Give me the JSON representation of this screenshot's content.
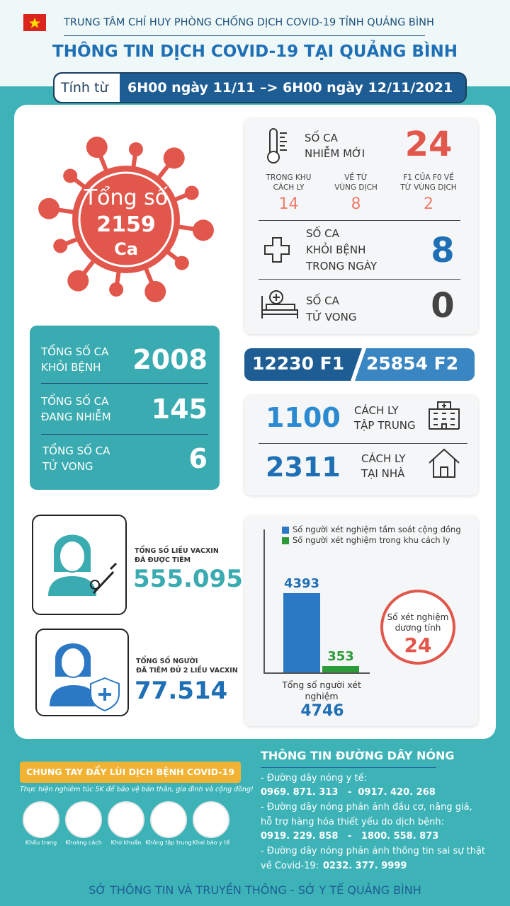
{
  "header": {
    "org": "TRUNG TÂM CHỈ HUY PHÒNG CHỐNG DỊCH COVID-19 TỈNH QUẢNG BÌNH",
    "title": "THÔNG TIN DỊCH COVID-19 TẠI QUẢNG BÌNH",
    "period_label": "Tính từ",
    "period": "6H00 ngày 11/11 –> 6H00 ngày 12/11/2021"
  },
  "total": {
    "label": "Tổng số",
    "value": "2159",
    "unit": "Ca"
  },
  "new_cases": {
    "label": [
      "SỐ CA",
      "NHIỄM MỚI"
    ],
    "value": "24",
    "breakdown": [
      {
        "label": [
          "TRONG KHU",
          "CÁCH LY"
        ],
        "value": "14"
      },
      {
        "label": [
          "VỀ TỪ",
          "VÙNG DỊCH"
        ],
        "value": "8"
      },
      {
        "label": [
          "F1 CỦA F0 VỀ",
          "TỪ VÙNG DỊCH"
        ],
        "value": "2"
      }
    ]
  },
  "recovered_today": {
    "label": [
      "SỐ CA",
      "KHỎI BỆNH",
      "TRONG NGÀY"
    ],
    "value": "8"
  },
  "deaths_today": {
    "label": [
      "SỐ CA",
      "TỬ VONG"
    ],
    "value": "0"
  },
  "totals": [
    {
      "label": [
        "TỔNG SỐ CA",
        "KHỎI BỆNH"
      ],
      "value": "2008"
    },
    {
      "label": [
        "TỔNG SỐ CA",
        "ĐANG NHIỄM"
      ],
      "value": "145"
    },
    {
      "label": [
        "TỔNG SỐ CA",
        "TỬ VONG"
      ],
      "value": "6"
    }
  ],
  "contacts": {
    "f1": "12230 F1",
    "f2": "25854 F2"
  },
  "isolation": [
    {
      "value": "1100",
      "label": [
        "CÁCH LY",
        "TẬP TRUNG"
      ]
    },
    {
      "value": "2311",
      "label": [
        "CÁCH LY",
        "TẠI NHÀ"
      ]
    }
  ],
  "vaccine": [
    {
      "label": [
        "TỔNG SỐ LIỀU VACXIN",
        "ĐÃ ĐƯỢC TIÊM"
      ],
      "value": "555.095"
    },
    {
      "label": [
        "TỔNG SỐ NGƯỜI",
        "ĐÃ TIÊM ĐỦ 2 LIỀU VACXIN"
      ],
      "value": "77.514"
    }
  ],
  "chart_data": {
    "type": "bar",
    "categories": [
      null
    ],
    "series": [
      {
        "name": "Số người xét nghiệm tầm soát cộng đồng",
        "color": "#2b78c4",
        "values": [
          4393
        ]
      },
      {
        "name": "Số người xét nghiệm trong khu cách ly",
        "color": "#2e9b3a",
        "values": [
          353
        ]
      }
    ],
    "x_label": "Tổng số người xét nghiệm",
    "total": 4746
  },
  "positive": {
    "label": "Số xét nghiệm dương tính",
    "value": "24"
  },
  "campaign": {
    "title": "CHUNG TAY ĐẨY LÙI DỊCH BỆNH COVID-19",
    "subtitle": "Thực hiện nghiêm túc 5K để bảo vệ bản thân, gia đình và cộng đồng!",
    "items": [
      "Khẩu trang",
      "Khoảng cách",
      "Khử khuẩn",
      "Không tập trung",
      "Khai báo y tế"
    ]
  },
  "hotline": {
    "title": "THÔNG TIN ĐƯỜNG DÂY NÓNG",
    "lines": [
      "- Đường dây nóng y tế:",
      "0969. 871. 313   -  0917. 420. 268",
      "- Đường dây nóng phản ánh đầu cơ, nâng giá,",
      "hỗ trợ hàng hóa thiết yếu do dịch bệnh:",
      "0919. 229. 858   -   1800. 558. 873",
      "- Đường dây nóng phản ánh thông tin sai sự thật",
      "về Covid-19:",
      "0232. 377. 9999"
    ]
  },
  "footer": "SỞ THÔNG TIN VÀ TRUYỀN THÔNG - SỞ Y TẾ QUẢNG BÌNH"
}
